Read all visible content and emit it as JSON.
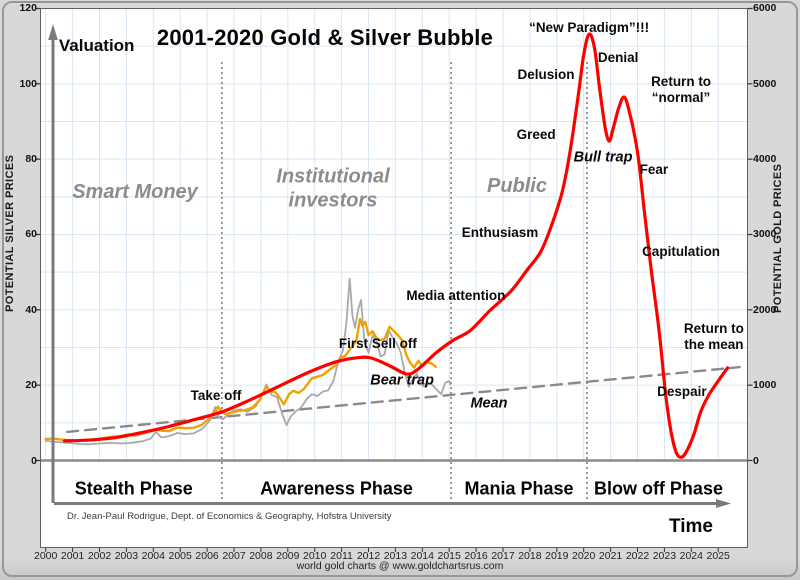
{
  "window": {
    "footer": "world gold charts @ www.goldchartsrus.com"
  },
  "chart_data": {
    "type": "line",
    "title": "2001-2020 Gold & Silver Bubble",
    "credit": "Dr. Jean-Paul Rodrigue, Dept. of Economics & Geography, Hofstra University",
    "axis_arrows": {
      "y_label": "Valuation",
      "x_label": "Time"
    },
    "y_axis_left": {
      "label": "POTENTIAL SILVER PRICES",
      "min": 0,
      "max": 120,
      "ticks": [
        0,
        20,
        40,
        60,
        80,
        100,
        120
      ]
    },
    "y_axis_right": {
      "label": "POTENTIAL GOLD PRICES",
      "min": 0,
      "max": 6000,
      "ticks": [
        0,
        1000,
        2000,
        3000,
        4000,
        5000,
        6000
      ]
    },
    "x_axis": {
      "label": "Time",
      "years": [
        2000,
        2001,
        2002,
        2003,
        2004,
        2005,
        2006,
        2007,
        2008,
        2009,
        2010,
        2011,
        2012,
        2013,
        2014,
        2015,
        2016,
        2017,
        2018,
        2019,
        2020,
        2021,
        2022,
        2023,
        2024,
        2025
      ]
    },
    "grid": {
      "show": true,
      "h_step_silver": 10,
      "v_step_years": 1
    },
    "phase_dividers_year": [
      2006.55,
      2015.07,
      2020.12
    ],
    "phases": [
      {
        "name": "Stealth Phase",
        "from": 2000.0,
        "to": 2006.55
      },
      {
        "name": "Awareness Phase",
        "from": 2006.55,
        "to": 2015.07
      },
      {
        "name": "Mania Phase",
        "from": 2015.07,
        "to": 2020.12
      },
      {
        "name": "Blow off Phase",
        "from": 2020.12,
        "to": 2025.45
      }
    ],
    "annotations": [
      {
        "text": "Valuation",
        "year": 2000.49,
        "value": 110.0,
        "style": "axis"
      },
      {
        "text": "Smart Money",
        "year": 2003.32,
        "value": 71.0,
        "style": "stage"
      },
      {
        "text": "Institutional\ninvestors",
        "year": 2010.68,
        "value": 72.0,
        "style": "stage"
      },
      {
        "text": "Public",
        "year": 2017.52,
        "value": 72.6,
        "style": "stage"
      },
      {
        "text": "Take off",
        "year": 2006.33,
        "value": 17.1,
        "style": "label"
      },
      {
        "text": "First Sell off",
        "year": 2012.35,
        "value": 30.9,
        "style": "label"
      },
      {
        "text": "Bear trap",
        "year": 2013.25,
        "value": 21.1,
        "style": "label-italic"
      },
      {
        "text": "Media attention",
        "year": 2015.25,
        "value": 43.7,
        "style": "label"
      },
      {
        "text": "Enthusiasm",
        "year": 2016.89,
        "value": 60.4,
        "style": "label"
      },
      {
        "text": "Greed",
        "year": 2018.23,
        "value": 86.4,
        "style": "label"
      },
      {
        "text": "Delusion",
        "year": 2018.6,
        "value": 102.3,
        "style": "label"
      },
      {
        "text": "“New Paradigm”!!!",
        "year": 2020.2,
        "value": 114.8,
        "style": "label"
      },
      {
        "text": "Denial",
        "year": 2021.28,
        "value": 106.9,
        "style": "label"
      },
      {
        "text": "Return to “normal”",
        "year": 2023.62,
        "value": 98.4,
        "style": "label"
      },
      {
        "text": "Bull trap",
        "year": 2020.72,
        "value": 80.3,
        "style": "label-italic"
      },
      {
        "text": "Fear",
        "year": 2022.61,
        "value": 77.1,
        "style": "label"
      },
      {
        "text": "Capitulation",
        "year": 2023.62,
        "value": 55.4,
        "style": "label"
      },
      {
        "text": "Return to\nthe mean",
        "year": 2024.84,
        "value": 32.8,
        "style": "label"
      },
      {
        "text": "Despair",
        "year": 2023.65,
        "value": 18.2,
        "style": "label"
      },
      {
        "text": "Mean",
        "year": 2016.48,
        "value": 15.0,
        "style": "label-italic"
      }
    ],
    "series": [
      {
        "name": "Bubble stages model",
        "color": "#fe0000",
        "width": 3.2,
        "style": "smooth",
        "axis": "left",
        "points": [
          [
            2000.7,
            5.2
          ],
          [
            2001.5,
            5.4
          ],
          [
            2002.5,
            6.0
          ],
          [
            2003.5,
            7.3
          ],
          [
            2004.5,
            8.9
          ],
          [
            2005.5,
            10.8
          ],
          [
            2006.55,
            12.9
          ],
          [
            2007.6,
            16.1
          ],
          [
            2008.7,
            19.8
          ],
          [
            2009.8,
            23.5
          ],
          [
            2010.8,
            26.2
          ],
          [
            2011.6,
            27.3
          ],
          [
            2012.1,
            27.2
          ],
          [
            2012.8,
            25.1
          ],
          [
            2013.4,
            23.0
          ],
          [
            2013.8,
            24.0
          ],
          [
            2014.5,
            28.5
          ],
          [
            2015.1,
            31.7
          ],
          [
            2015.8,
            34.6
          ],
          [
            2016.5,
            39.7
          ],
          [
            2017.3,
            45.0
          ],
          [
            2017.9,
            50.6
          ],
          [
            2018.4,
            55.4
          ],
          [
            2018.8,
            62.3
          ],
          [
            2019.2,
            71.3
          ],
          [
            2019.5,
            82.4
          ],
          [
            2019.8,
            97.0
          ],
          [
            2020.0,
            107.7
          ],
          [
            2020.2,
            113.2
          ],
          [
            2020.4,
            109.5
          ],
          [
            2020.6,
            98.4
          ],
          [
            2020.8,
            88.3
          ],
          [
            2020.95,
            84.8
          ],
          [
            2021.1,
            88.3
          ],
          [
            2021.3,
            93.6
          ],
          [
            2021.5,
            96.5
          ],
          [
            2021.7,
            92.5
          ],
          [
            2022.0,
            81.9
          ],
          [
            2022.25,
            66.5
          ],
          [
            2022.5,
            51.1
          ],
          [
            2022.8,
            34.6
          ],
          [
            2023.05,
            17.4
          ],
          [
            2023.25,
            7.6
          ],
          [
            2023.45,
            2.0
          ],
          [
            2023.65,
            0.9
          ],
          [
            2023.85,
            2.8
          ],
          [
            2024.1,
            7.0
          ],
          [
            2024.35,
            12.9
          ],
          [
            2024.65,
            17.4
          ],
          [
            2025.0,
            21.1
          ],
          [
            2025.35,
            24.6
          ]
        ]
      },
      {
        "name": "Mean",
        "color": "#8a8a8a",
        "width": 2.4,
        "style": "dashed",
        "axis": "left",
        "points": [
          [
            2000.8,
            7.6
          ],
          [
            2025.8,
            24.8
          ]
        ]
      },
      {
        "name": "Silver price (USD/oz)",
        "color": "#a9a9a9",
        "width": 1.8,
        "style": "jagged",
        "axis": "left",
        "points": [
          [
            2000.0,
            5.2
          ],
          [
            2000.4,
            4.9
          ],
          [
            2000.8,
            4.7
          ],
          [
            2001.2,
            4.4
          ],
          [
            2001.6,
            4.3
          ],
          [
            2002.0,
            4.5
          ],
          [
            2002.4,
            4.7
          ],
          [
            2002.8,
            4.5
          ],
          [
            2003.2,
            4.7
          ],
          [
            2003.6,
            5.1
          ],
          [
            2003.9,
            5.8
          ],
          [
            2004.1,
            7.6
          ],
          [
            2004.3,
            6.1
          ],
          [
            2004.6,
            6.5
          ],
          [
            2004.9,
            7.3
          ],
          [
            2005.2,
            7.0
          ],
          [
            2005.5,
            7.2
          ],
          [
            2005.8,
            8.3
          ],
          [
            2006.1,
            10.6
          ],
          [
            2006.3,
            14.2
          ],
          [
            2006.45,
            11.4
          ],
          [
            2006.6,
            11.0
          ],
          [
            2006.8,
            12.4
          ],
          [
            2007.0,
            13.3
          ],
          [
            2007.25,
            13.6
          ],
          [
            2007.5,
            12.9
          ],
          [
            2007.8,
            14.3
          ],
          [
            2008.0,
            16.6
          ],
          [
            2008.2,
            20.2
          ],
          [
            2008.4,
            17.4
          ],
          [
            2008.6,
            16.8
          ],
          [
            2008.8,
            12.2
          ],
          [
            2008.95,
            9.4
          ],
          [
            2009.1,
            11.6
          ],
          [
            2009.3,
            13.1
          ],
          [
            2009.5,
            14.1
          ],
          [
            2009.7,
            16.3
          ],
          [
            2009.9,
            17.6
          ],
          [
            2010.1,
            17.1
          ],
          [
            2010.3,
            18.3
          ],
          [
            2010.5,
            18.6
          ],
          [
            2010.7,
            21.2
          ],
          [
            2010.9,
            26.8
          ],
          [
            2011.05,
            29.2
          ],
          [
            2011.18,
            36.5
          ],
          [
            2011.3,
            48.3
          ],
          [
            2011.4,
            38.5
          ],
          [
            2011.5,
            35.2
          ],
          [
            2011.62,
            40.2
          ],
          [
            2011.72,
            42.6
          ],
          [
            2011.85,
            31.2
          ],
          [
            2012.0,
            28.6
          ],
          [
            2012.15,
            33.2
          ],
          [
            2012.3,
            31.6
          ],
          [
            2012.45,
            27.6
          ],
          [
            2012.6,
            28.2
          ],
          [
            2012.75,
            34.6
          ],
          [
            2012.9,
            32.6
          ],
          [
            2013.05,
            31.1
          ],
          [
            2013.2,
            28.6
          ],
          [
            2013.35,
            23.2
          ],
          [
            2013.5,
            19.6
          ],
          [
            2013.65,
            21.6
          ],
          [
            2013.8,
            23.1
          ],
          [
            2013.95,
            20.1
          ],
          [
            2014.1,
            19.6
          ],
          [
            2014.3,
            20.6
          ],
          [
            2014.5,
            19.1
          ],
          [
            2014.7,
            17.6
          ],
          [
            2014.85,
            20.6
          ],
          [
            2015.0,
            21.1
          ],
          [
            2015.05,
            20.2
          ]
        ]
      },
      {
        "name": "Gold price (USD/oz)",
        "color": "#f0a202",
        "width": 2.4,
        "style": "jagged",
        "axis": "right",
        "points": [
          [
            2000.0,
            285
          ],
          [
            2000.3,
            290
          ],
          [
            2000.6,
            276
          ],
          [
            2000.9,
            270
          ],
          [
            2001.2,
            262
          ],
          [
            2001.5,
            270
          ],
          [
            2001.8,
            278
          ],
          [
            2002.1,
            295
          ],
          [
            2002.4,
            312
          ],
          [
            2002.7,
            318
          ],
          [
            2003.0,
            342
          ],
          [
            2003.3,
            330
          ],
          [
            2003.6,
            358
          ],
          [
            2003.9,
            388
          ],
          [
            2004.1,
            412
          ],
          [
            2004.35,
            394
          ],
          [
            2004.6,
            392
          ],
          [
            2004.9,
            438
          ],
          [
            2005.2,
            428
          ],
          [
            2005.5,
            434
          ],
          [
            2005.8,
            472
          ],
          [
            2006.05,
            550
          ],
          [
            2006.25,
            625
          ],
          [
            2006.4,
            715
          ],
          [
            2006.55,
            640
          ],
          [
            2006.7,
            616
          ],
          [
            2006.9,
            632
          ],
          [
            2007.1,
            655
          ],
          [
            2007.4,
            668
          ],
          [
            2007.7,
            705
          ],
          [
            2007.95,
            800
          ],
          [
            2008.2,
            985
          ],
          [
            2008.35,
            918
          ],
          [
            2008.55,
            902
          ],
          [
            2008.7,
            832
          ],
          [
            2008.85,
            745
          ],
          [
            2009.05,
            880
          ],
          [
            2009.2,
            925
          ],
          [
            2009.4,
            898
          ],
          [
            2009.6,
            950
          ],
          [
            2009.9,
            1092
          ],
          [
            2010.1,
            1112
          ],
          [
            2010.3,
            1135
          ],
          [
            2010.55,
            1205
          ],
          [
            2010.75,
            1255
          ],
          [
            2010.95,
            1360
          ],
          [
            2011.15,
            1395
          ],
          [
            2011.35,
            1495
          ],
          [
            2011.55,
            1590
          ],
          [
            2011.68,
            1880
          ],
          [
            2011.78,
            1790
          ],
          [
            2011.88,
            1840
          ],
          [
            2012.0,
            1665
          ],
          [
            2012.15,
            1715
          ],
          [
            2012.3,
            1625
          ],
          [
            2012.45,
            1595
          ],
          [
            2012.6,
            1615
          ],
          [
            2012.78,
            1775
          ],
          [
            2012.95,
            1715
          ],
          [
            2013.1,
            1660
          ],
          [
            2013.25,
            1595
          ],
          [
            2013.4,
            1405
          ],
          [
            2013.55,
            1295
          ],
          [
            2013.7,
            1235
          ],
          [
            2013.85,
            1325
          ],
          [
            2014.0,
            1255
          ],
          [
            2014.2,
            1305
          ],
          [
            2014.35,
            1288
          ],
          [
            2014.5,
            1245
          ]
        ]
      }
    ],
    "colors": {
      "background": "#d8d8d8",
      "plot_background": "#ffffff",
      "grid": "#d9e6f5",
      "frame": "#5f5f5f",
      "zero_line": "#8a8a8a",
      "divider": "#6e6e6e",
      "arrow": "#7a7a7a",
      "bubble_curve": "#fe0000",
      "gold": "#f0a202",
      "silver": "#a9a9a9",
      "mean": "#8a8a8a",
      "stage_text": "#8c8c8c"
    }
  }
}
